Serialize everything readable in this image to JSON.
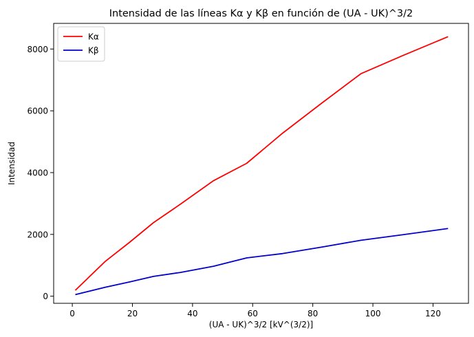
{
  "chart_data": {
    "type": "line",
    "title": "Intensidad de las líneas Kα y Kβ en función de (UA - UK)^3/2",
    "xlabel": "(UA - UK)^3/2 [kV^(3/2)]",
    "ylabel": "Intensidad",
    "xlim": [
      -6.2,
      131.8
    ],
    "ylim": [
      -230,
      8830
    ],
    "xticks": [
      0,
      20,
      40,
      60,
      80,
      100,
      120
    ],
    "yticks": [
      0,
      2000,
      4000,
      6000,
      8000
    ],
    "grid": false,
    "legend_position": "top-left",
    "x": [
      1,
      11,
      19,
      27,
      36,
      47,
      58,
      70,
      83,
      96,
      110,
      125
    ],
    "series": [
      {
        "name": "Kα",
        "color": "#ff0000",
        "values": [
          190,
          1130,
          1740,
          2380,
          2980,
          3740,
          4300,
          5280,
          6250,
          7200,
          7790,
          8400
        ]
      },
      {
        "name": "Kβ",
        "color": "#0000cc",
        "values": [
          50,
          290,
          460,
          640,
          770,
          970,
          1240,
          1380,
          1590,
          1810,
          1990,
          2190
        ]
      }
    ]
  }
}
